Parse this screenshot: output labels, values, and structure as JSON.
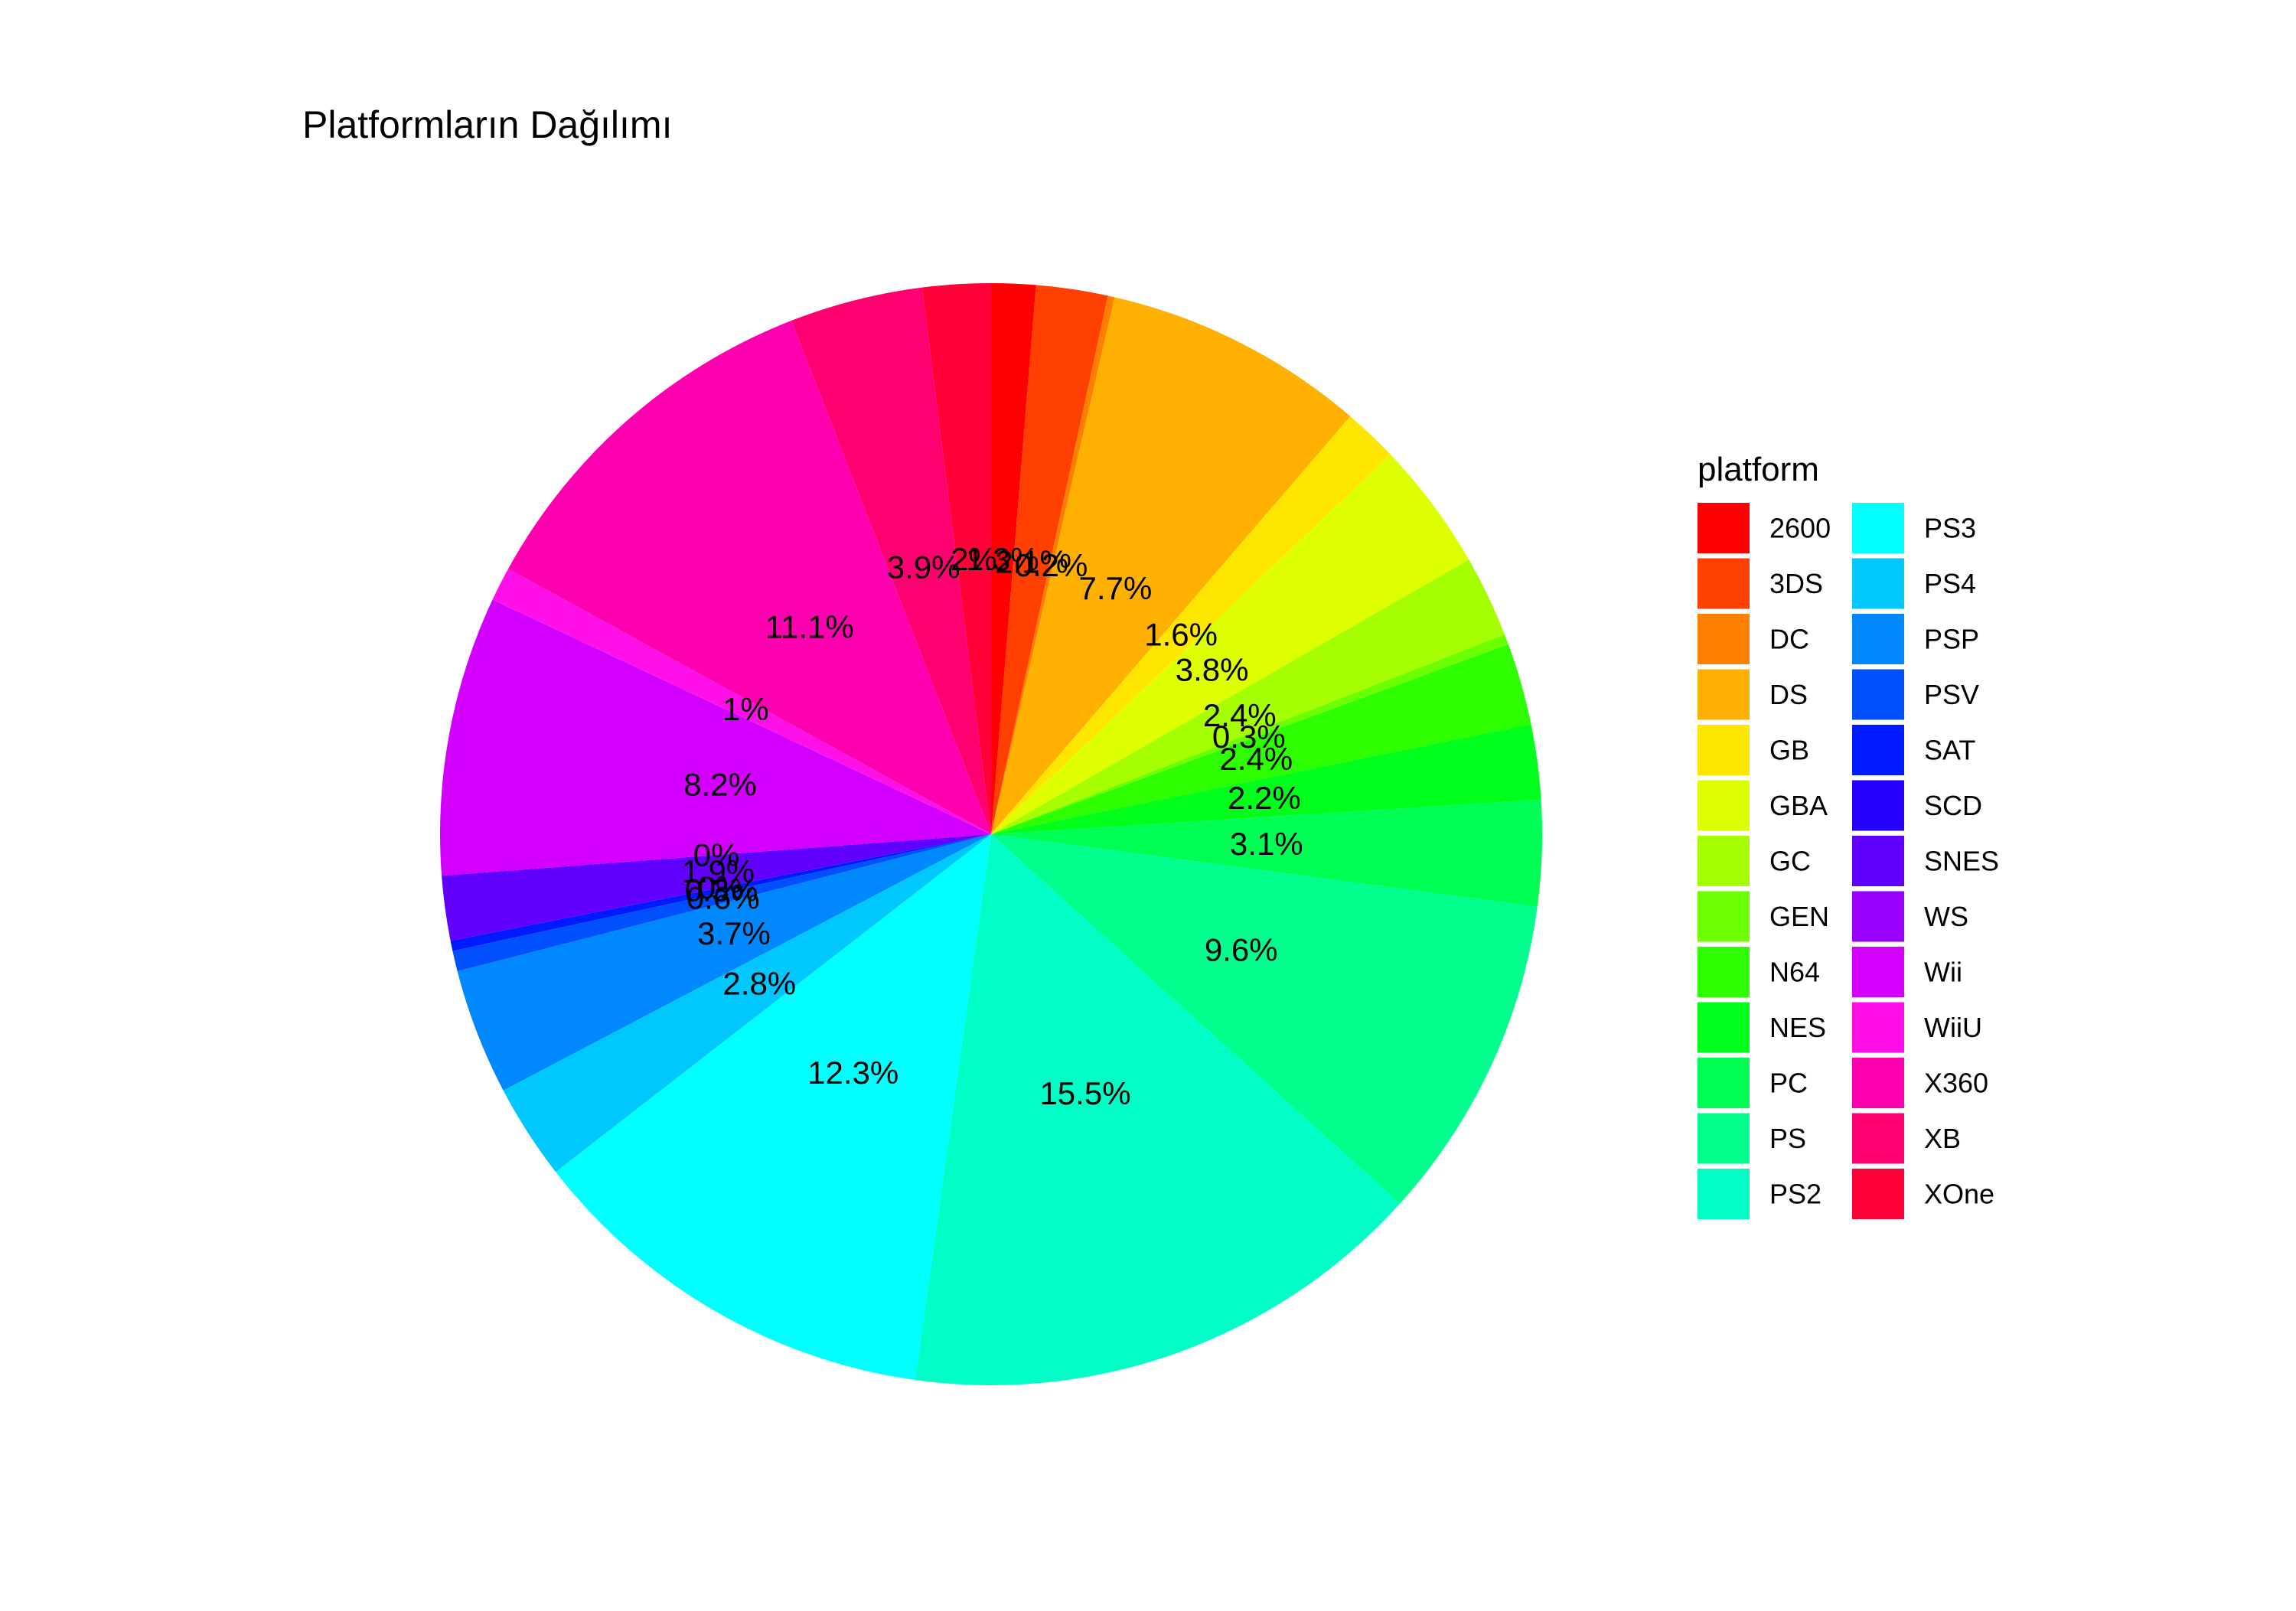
{
  "chart_data": {
    "type": "pie",
    "title": "Platformların Dağılımı",
    "legend": {
      "title": "platform",
      "placement": "right",
      "columns": 2
    },
    "slices": [
      {
        "name": "2600",
        "value": 1.3,
        "label": "1.3%",
        "color": "#FF0000"
      },
      {
        "name": "3DS",
        "value": 2.1,
        "label": "2.1%",
        "color": "#FF4000"
      },
      {
        "name": "DC",
        "value": 0.2,
        "label": "0.2%",
        "color": "#FF8000"
      },
      {
        "name": "DS",
        "value": 7.7,
        "label": "7.7%",
        "color": "#FFB000"
      },
      {
        "name": "GB",
        "value": 1.6,
        "label": "1.6%",
        "color": "#FFE600"
      },
      {
        "name": "GBA",
        "value": 3.8,
        "label": "3.8%",
        "color": "#DDFF00"
      },
      {
        "name": "GC",
        "value": 2.4,
        "label": "2.4%",
        "color": "#A6FF00"
      },
      {
        "name": "GEN",
        "value": 0.3,
        "label": "0.3%",
        "color": "#6CFF00"
      },
      {
        "name": "N64",
        "value": 2.4,
        "label": "2.4%",
        "color": "#2EFF00"
      },
      {
        "name": "NES",
        "value": 2.2,
        "label": "2.2%",
        "color": "#00FF1A"
      },
      {
        "name": "PC",
        "value": 3.1,
        "label": "3.1%",
        "color": "#00FF55"
      },
      {
        "name": "PS",
        "value": 9.6,
        "label": "9.6%",
        "color": "#00FF8C"
      },
      {
        "name": "PS2",
        "value": 15.5,
        "label": "15.5%",
        "color": "#00FFC6"
      },
      {
        "name": "PS3",
        "value": 12.3,
        "label": "12.3%",
        "color": "#00FFFF"
      },
      {
        "name": "PS4",
        "value": 2.8,
        "label": "2.8%",
        "color": "#00C8FF"
      },
      {
        "name": "PSP",
        "value": 3.7,
        "label": "3.7%",
        "color": "#0088FF"
      },
      {
        "name": "PSV",
        "value": 0.6,
        "label": "0.6%",
        "color": "#0050FF"
      },
      {
        "name": "SAT",
        "value": 0.3,
        "label": "0.3%",
        "color": "#001AFF"
      },
      {
        "name": "SCD",
        "value": 0.0,
        "label": "0%",
        "color": "#2600FF"
      },
      {
        "name": "SNES",
        "value": 1.9,
        "label": "1.9%",
        "color": "#6200FF"
      },
      {
        "name": "WS",
        "value": 0.0,
        "label": "0%",
        "color": "#9A00FF"
      },
      {
        "name": "Wii",
        "value": 8.2,
        "label": "8.2%",
        "color": "#D400FF"
      },
      {
        "name": "WiiU",
        "value": 1.0,
        "label": "1%",
        "color": "#FF10E8"
      },
      {
        "name": "X360",
        "value": 11.1,
        "label": "11.1%",
        "color": "#FF00B0"
      },
      {
        "name": "XB",
        "value": 3.9,
        "label": "3.9%",
        "color": "#FF0070"
      },
      {
        "name": "XOne",
        "value": 2.0,
        "label": "2%",
        "color": "#FF0038"
      }
    ]
  }
}
